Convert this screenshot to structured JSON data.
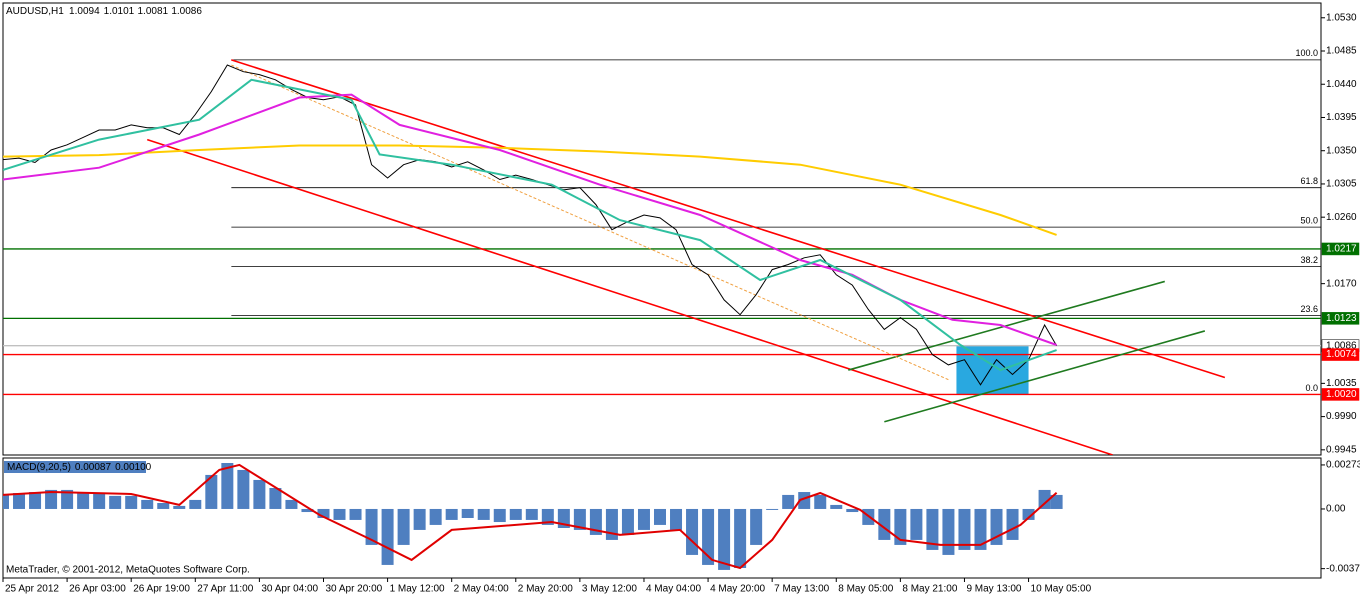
{
  "chart_data": [
    {
      "type": "line",
      "title": "AUDUSD,H1",
      "ohlc": {
        "open": 1.0094,
        "high": 1.0101,
        "low": 1.0081,
        "close": 1.0086
      },
      "xlim": [
        0,
        329
      ],
      "ylim": [
        0.9938,
        1.055
      ],
      "xticks": [
        {
          "value": 0,
          "label": "25 Apr 2012"
        },
        {
          "value": 16,
          "label": "26 Apr 03:00"
        },
        {
          "value": 32,
          "label": "26 Apr 19:00"
        },
        {
          "value": 48,
          "label": "27 Apr 11:00"
        },
        {
          "value": 64,
          "label": "30 Apr 04:00"
        },
        {
          "value": 80,
          "label": "30 Apr 20:00"
        },
        {
          "value": 96,
          "label": "1 May 12:00"
        },
        {
          "value": 112,
          "label": "2 May 04:00"
        },
        {
          "value": 128,
          "label": "2 May 20:00"
        },
        {
          "value": 144,
          "label": "3 May 12:00"
        },
        {
          "value": 160,
          "label": "4 May 04:00"
        },
        {
          "value": 176,
          "label": "4 May 20:00"
        },
        {
          "value": 192,
          "label": "7 May 13:00"
        },
        {
          "value": 208,
          "label": "8 May 05:00"
        },
        {
          "value": 224,
          "label": "8 May 21:00"
        },
        {
          "value": 240,
          "label": "9 May 13:00"
        },
        {
          "value": 256,
          "label": "10 May 05:00"
        }
      ],
      "yticks": [
        {
          "value": 1.053,
          "label": "1.0530"
        },
        1.0485,
        {
          "value": 1.044,
          "label": "1.0440"
        },
        1.0395,
        {
          "value": 1.035,
          "label": "1.0350"
        },
        1.0305,
        {
          "value": 1.026,
          "label": "1.0260"
        },
        {
          "value": 1.017,
          "label": "1.0170"
        },
        1.0035,
        {
          "value": 0.999,
          "label": "0.9990"
        },
        0.9945
      ],
      "series": [
        {
          "color": "#000000",
          "x": [
            0,
            4,
            8,
            12,
            16,
            20,
            24,
            28,
            32,
            36,
            40,
            44,
            48,
            52,
            56,
            60,
            64,
            68,
            72,
            76,
            80,
            84,
            88,
            92,
            96,
            100,
            104,
            108,
            112,
            116,
            120,
            124,
            128,
            132,
            136,
            140,
            144,
            148,
            152,
            156,
            160,
            164,
            168,
            172,
            176,
            180,
            184,
            188,
            192,
            196,
            200,
            204,
            208,
            212,
            216,
            220,
            224,
            228,
            232,
            236,
            240,
            244,
            248,
            252,
            256,
            260,
            263
          ],
          "values": [
            1.0338,
            1.034,
            1.0334,
            1.0351,
            1.0358,
            1.0368,
            1.0378,
            1.0378,
            1.0385,
            1.0381,
            1.0381,
            1.0372,
            1.0399,
            1.043,
            1.0466,
            1.0457,
            1.0453,
            1.0446,
            1.0433,
            1.0422,
            1.0419,
            1.0423,
            1.0412,
            1.0331,
            1.0313,
            1.0331,
            1.0338,
            1.0335,
            1.0328,
            1.0335,
            1.0324,
            1.0311,
            1.0317,
            1.0311,
            1.0304,
            1.0297,
            1.03,
            1.0277,
            1.0243,
            1.0254,
            1.0263,
            1.0259,
            1.0243,
            1.0196,
            1.0182,
            1.0148,
            1.0128,
            1.0155,
            1.0189,
            1.0196,
            1.0205,
            1.0209,
            1.0182,
            1.0168,
            1.0135,
            1.0108,
            1.0124,
            1.0108,
            1.0074,
            1.006,
            1.0067,
            1.0033,
            1.0067,
            1.0047,
            1.0067,
            1.0114,
            1.0086
          ]
        },
        {
          "color": "#ffcc00",
          "x": [
            0,
            24,
            49,
            74,
            99,
            124,
            149,
            174,
            199,
            224,
            249,
            263
          ],
          "values": [
            1.0342,
            1.0344,
            1.0351,
            1.0357,
            1.0357,
            1.0354,
            1.0349,
            1.0342,
            1.0331,
            1.0304,
            1.0263,
            1.0236
          ]
        },
        {
          "color": "#e020e0",
          "x": [
            0,
            24,
            49,
            74,
            87,
            99,
            124,
            149,
            174,
            199,
            212,
            224,
            237,
            249,
            263
          ],
          "values": [
            1.0311,
            1.0327,
            1.0372,
            1.0422,
            1.0426,
            1.0385,
            1.0351,
            1.0304,
            1.0263,
            1.0202,
            1.0182,
            1.0148,
            1.0121,
            1.0114,
            1.0087
          ]
        },
        {
          "color": "#30c0a0",
          "x": [
            0,
            24,
            49,
            62,
            74,
            87,
            94,
            112,
            137,
            154,
            174,
            189,
            204,
            224,
            239,
            249,
            263
          ],
          "values": [
            1.0324,
            1.0365,
            1.0392,
            1.0446,
            1.0433,
            1.0419,
            1.0345,
            1.0331,
            1.0304,
            1.0256,
            1.0229,
            1.0175,
            1.0202,
            1.0148,
            1.0087,
            1.0053,
            1.008
          ]
        }
      ],
      "levels": [
        {
          "value": 1.0217,
          "color": "#007000"
        },
        {
          "value": 1.0123,
          "color": "#007000"
        },
        {
          "value": 1.0086,
          "color": "#c0c0c0"
        },
        {
          "value": 1.0074,
          "color": "#ff0000"
        },
        {
          "value": 1.002,
          "label": "1.0020",
          "color": "#ff0000"
        }
      ],
      "fib": {
        "high": 1.0473,
        "low": 1.002,
        "x_start": 57,
        "levels": [
          {
            "value": 100,
            "label": "100.0"
          },
          61.8,
          {
            "value": 50,
            "label": "50.0"
          },
          38.2,
          23.6,
          {
            "value": 0,
            "label": "0.0"
          }
        ]
      },
      "rectangle": {
        "color": "#29a8e0",
        "x": [
          238,
          256
        ],
        "values": [
          1.0087,
          1.002
        ]
      },
      "trendlines": [
        {
          "color": "#ff0000",
          "x": [
            57,
            305
          ],
          "values": [
            1.0473,
            1.0043
          ]
        },
        {
          "color": "#ff0000",
          "x": [
            36,
            277
          ],
          "values": [
            1.0365,
            0.9938
          ]
        },
        {
          "color": "#1f7a1f",
          "x": [
            211,
            290
          ],
          "values": [
            1.0053,
            1.0173
          ]
        },
        {
          "color": "#1f7a1f",
          "x": [
            220,
            300
          ],
          "values": [
            0.9983,
            1.0106
          ]
        },
        {
          "color": "#f0a040",
          "dashed": true,
          "x": [
            57,
            236
          ],
          "values": [
            1.0466,
            1.004
          ]
        }
      ]
    },
    {
      "type": "bar",
      "title": "MACD(9,20,5)",
      "main_value": 0.00087,
      "signal_value": {
        "value": 0.001,
        "label": "0.00100"
      },
      "ylim": [
        -0.00428,
        0.00316
      ],
      "yticks": [
        0.00273,
        {
          "value": 0,
          "label": "0.00"
        },
        -0.0037
      ],
      "color": "#4f7fc0",
      "x": [
        0,
        4,
        8,
        12,
        16,
        20,
        24,
        28,
        32,
        36,
        40,
        44,
        48,
        52,
        56,
        60,
        64,
        68,
        72,
        76,
        80,
        84,
        88,
        92,
        96,
        100,
        104,
        108,
        112,
        116,
        120,
        124,
        128,
        132,
        136,
        140,
        144,
        148,
        152,
        156,
        160,
        164,
        168,
        172,
        176,
        180,
        184,
        188,
        192,
        196,
        200,
        204,
        208,
        212,
        216,
        220,
        224,
        228,
        232,
        236,
        240,
        244,
        248,
        252,
        256,
        260,
        263
      ],
      "values": [
        0.00087,
        0.00099,
        0.00105,
        0.00118,
        0.00118,
        0.00105,
        0.00093,
        0.00081,
        0.00081,
        0.00056,
        0.00037,
        0.00019,
        0.00056,
        0.00211,
        0.00285,
        0.00242,
        0.0018,
        0.0013,
        0.00056,
        -0.00019,
        -0.00056,
        -0.00068,
        -0.00068,
        -0.00223,
        -0.00347,
        -0.00223,
        -0.0013,
        -0.00099,
        -0.00068,
        -0.00056,
        -0.00068,
        -0.00081,
        -0.00068,
        -0.00068,
        -0.00099,
        -0.00118,
        -0.0013,
        -0.00161,
        -0.00192,
        -0.00161,
        -0.0013,
        -0.00099,
        -0.0013,
        -0.00285,
        -0.00347,
        -0.00378,
        -0.00366,
        -0.00223,
        -6e-05,
        0.00087,
        0.00105,
        0.00087,
        0.00025,
        -0.00019,
        -0.00099,
        -0.00192,
        -0.00223,
        -0.00192,
        -0.00254,
        -0.00285,
        -0.00254,
        -0.00254,
        -0.00223,
        -0.00192,
        -0.00068,
        0.00118,
        0.00087
      ],
      "signal": {
        "color": "#e00000",
        "x": [
          0,
          12,
          32,
          44,
          54,
          59,
          69,
          79,
          92,
          102,
          112,
          137,
          154,
          169,
          177,
          184,
          192,
          199,
          204,
          214,
          224,
          234,
          244,
          254,
          263
        ],
        "values": [
          0.00087,
          0.00105,
          0.00093,
          0.00025,
          0.00242,
          0.00273,
          0.00118,
          -0.00037,
          -0.00192,
          -0.00316,
          -0.0013,
          -0.00081,
          -0.00161,
          -0.0013,
          -0.00316,
          -0.00366,
          -0.00192,
          0.00056,
          0.00099,
          -6e-05,
          -0.00192,
          -0.00223,
          -0.00223,
          -0.00099,
          0.001
        ]
      }
    }
  ],
  "footer": "MetaTrader, © 2001-2012, MetaQuotes Software Corp."
}
